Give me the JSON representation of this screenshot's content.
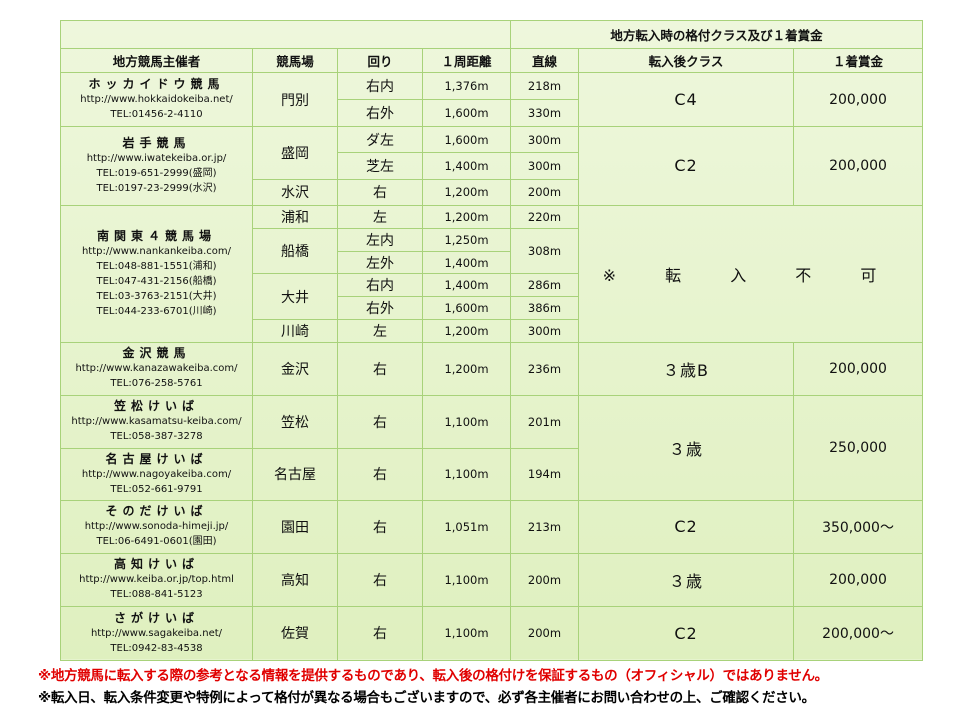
{
  "header": {
    "super_title": "地方転入時の格付クラス及び１着賞金",
    "columns": [
      "地方競馬主催者",
      "競馬場",
      "回り",
      "１周距離",
      "直線",
      "転入後クラス",
      "１着賞金"
    ]
  },
  "groups": [
    {
      "class": "C4",
      "prize": "200,000",
      "organizers": [
        {
          "name": "ホッカイドウ競馬",
          "url": "http://www.hokkaidokeiba.net/",
          "tel": [
            "TEL:01456-2-4110"
          ],
          "venues": [
            {
              "name": "門別",
              "courses": [
                {
                  "turn": "右内",
                  "distance": "1,376m",
                  "straight": "218m"
                },
                {
                  "turn": "右外",
                  "distance": "1,600m",
                  "straight": "330m"
                }
              ]
            }
          ]
        }
      ]
    },
    {
      "class": "C2",
      "prize": "200,000",
      "organizers": [
        {
          "name": "岩手競馬",
          "url": "http://www.iwatekeiba.or.jp/",
          "tel": [
            "TEL:019-651-2999(盛岡)",
            "TEL:0197-23-2999(水沢)"
          ],
          "venues": [
            {
              "name": "盛岡",
              "courses": [
                {
                  "turn": "ダ左",
                  "distance": "1,600m",
                  "straight": "300m"
                },
                {
                  "turn": "芝左",
                  "distance": "1,400m",
                  "straight": "300m"
                }
              ]
            },
            {
              "name": "水沢",
              "courses": [
                {
                  "turn": "右",
                  "distance": "1,200m",
                  "straight": "200m"
                }
              ]
            }
          ]
        }
      ]
    },
    {
      "class": "※ 転 入 不 可",
      "prize": null,
      "organizers": [
        {
          "name": "南関東４競馬場",
          "url": "http://www.nankankeiba.com/",
          "tel": [
            "TEL:048-881-1551(浦和)",
            "TEL:047-431-2156(船橋)",
            "TEL:03-3763-2151(大井)",
            "TEL:044-233-6701(川崎)"
          ],
          "venues": [
            {
              "name": "浦和",
              "courses": [
                {
                  "turn": "左",
                  "distance": "1,200m",
                  "straight": "220m"
                }
              ]
            },
            {
              "name": "船橋",
              "straight": "308m",
              "courses": [
                {
                  "turn": "左内",
                  "distance": "1,250m"
                },
                {
                  "turn": "左外",
                  "distance": "1,400m"
                }
              ]
            },
            {
              "name": "大井",
              "courses": [
                {
                  "turn": "右内",
                  "distance": "1,400m",
                  "straight": "286m"
                },
                {
                  "turn": "右外",
                  "distance": "1,600m",
                  "straight": "386m"
                }
              ]
            },
            {
              "name": "川崎",
              "courses": [
                {
                  "turn": "左",
                  "distance": "1,200m",
                  "straight": "300m"
                }
              ]
            }
          ]
        }
      ]
    },
    {
      "class": "３歳B",
      "prize": "200,000",
      "organizers": [
        {
          "name": "金沢競馬",
          "url": "http://www.kanazawakeiba.com/",
          "tel": [
            "TEL:076-258-5761"
          ],
          "venues": [
            {
              "name": "金沢",
              "courses": [
                {
                  "turn": "右",
                  "distance": "1,200m",
                  "straight": "236m"
                }
              ]
            }
          ]
        }
      ]
    },
    {
      "class": "３歳",
      "prize": "250,000",
      "organizers": [
        {
          "name": "笠松けいば",
          "url": "http://www.kasamatsu-keiba.com/",
          "tel": [
            "TEL:058-387-3278"
          ],
          "venues": [
            {
              "name": "笠松",
              "courses": [
                {
                  "turn": "右",
                  "distance": "1,100m",
                  "straight": "201m"
                }
              ]
            }
          ]
        },
        {
          "name": "名古屋けいば",
          "url": "http://www.nagoyakeiba.com/",
          "tel": [
            "TEL:052-661-9791"
          ],
          "venues": [
            {
              "name": "名古屋",
              "courses": [
                {
                  "turn": "右",
                  "distance": "1,100m",
                  "straight": "194m"
                }
              ]
            }
          ]
        }
      ]
    },
    {
      "class": "C2",
      "prize": "350,000～",
      "organizers": [
        {
          "name": "そのだけいば",
          "url": "http://www.sonoda-himeji.jp/",
          "tel": [
            "TEL:06-6491-0601(園田)"
          ],
          "venues": [
            {
              "name": "園田",
              "courses": [
                {
                  "turn": "右",
                  "distance": "1,051m",
                  "straight": "213m"
                }
              ]
            }
          ]
        }
      ]
    },
    {
      "class": "３歳",
      "prize": "200,000",
      "organizers": [
        {
          "name": "高知けいば",
          "url": "http://www.keiba.or.jp/top.html",
          "tel": [
            "TEL:088-841-5123"
          ],
          "venues": [
            {
              "name": "高知",
              "courses": [
                {
                  "turn": "右",
                  "distance": "1,100m",
                  "straight": "200m"
                }
              ]
            }
          ]
        }
      ]
    },
    {
      "class": "C2",
      "prize": "200,000～",
      "organizers": [
        {
          "name": "さがけいば",
          "url": "http://www.sagakeiba.net/",
          "tel": [
            "TEL:0942-83-4538"
          ],
          "venues": [
            {
              "name": "佐賀",
              "courses": [
                {
                  "turn": "右",
                  "distance": "1,100m",
                  "straight": "200m"
                }
              ]
            }
          ]
        }
      ]
    }
  ],
  "notes": [
    "※地方競馬に転入する際の参考となる情報を提供するものであり、転入後の格付けを保証するもの（オフィシャル）ではありません。",
    "※転入日、転入条件変更や特例によって格付が異なる場合もございますので、必ず各主催者にお問い合わせの上、ご確認ください。"
  ],
  "colors": {
    "background": "#dff0bf",
    "border": "#a8d27a",
    "warning": "#e00000"
  }
}
